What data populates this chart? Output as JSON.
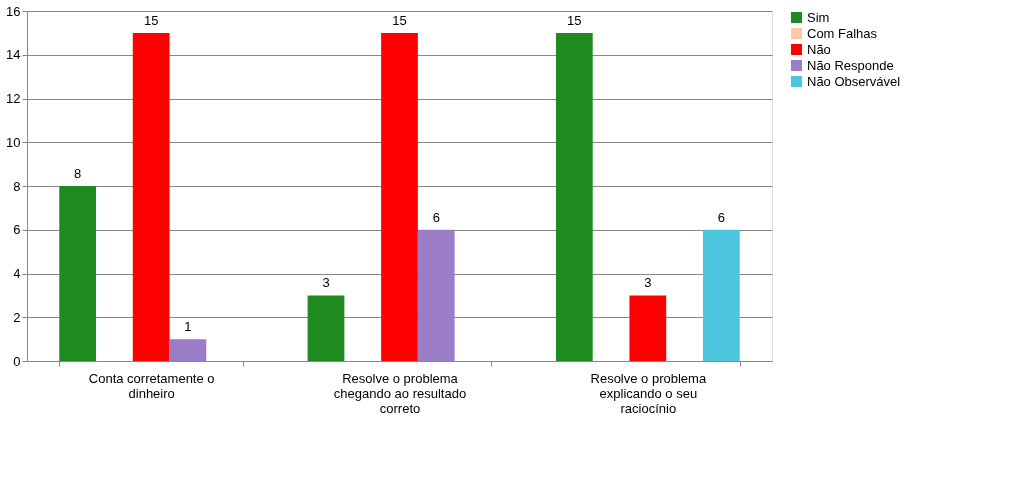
{
  "chart_data": {
    "type": "bar",
    "categories": [
      "Conta corretamente o dinheiro",
      "Resolve o problema chegando ao resultado correto",
      "Resolve o problema explicando o seu raciocínio"
    ],
    "series": [
      {
        "name": "Sim",
        "color": "#1f8a1f",
        "values": [
          8,
          3,
          15
        ]
      },
      {
        "name": "Com Falhas",
        "color": "#fac9a8",
        "values": [
          null,
          null,
          null
        ]
      },
      {
        "name": "Não",
        "color": "#ff0000",
        "values": [
          15,
          15,
          3
        ]
      },
      {
        "name": "Não Responde",
        "color": "#9a7dc6",
        "values": [
          1,
          6,
          null
        ]
      },
      {
        "name": "Não Observável",
        "color": "#4cc6df",
        "values": [
          null,
          null,
          6
        ]
      }
    ],
    "ylim": [
      0,
      16
    ],
    "yticks": [
      0,
      2,
      4,
      6,
      8,
      10,
      12,
      14,
      16
    ],
    "grid": "y",
    "legend": "right",
    "data_labels": true
  }
}
